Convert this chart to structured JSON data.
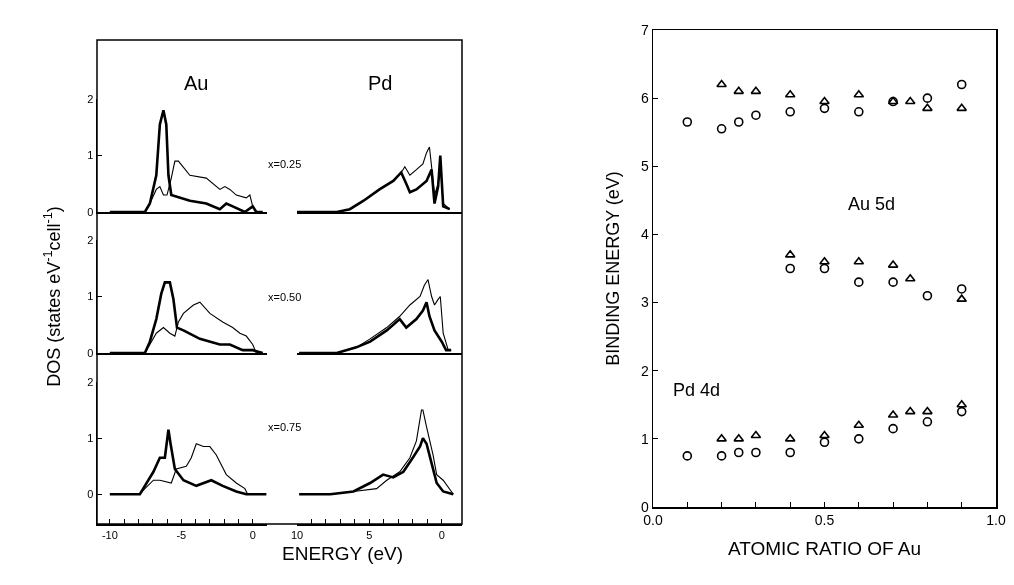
{
  "chart_data": [
    {
      "type": "line",
      "title": "Au",
      "xlim": [
        -10.9,
        1
      ],
      "ylim": [
        0,
        2
      ],
      "yticks": [
        0,
        1,
        2
      ],
      "tick_labels": "y",
      "series": [
        {
          "color": "#000000",
          "x": [
            -10,
            -7.55,
            -7.2,
            -6.75,
            -6.5,
            -6.25,
            -6.05,
            -5.9,
            -5.7,
            -4.4,
            -3.25,
            -2.3,
            -1.85,
            -1.4,
            -0.55,
            0,
            0.25,
            0.7
          ],
          "values": [
            0,
            0,
            0.15,
            0.65,
            1.55,
            1.8,
            1.55,
            0.65,
            0.3,
            0.2,
            0.15,
            0.05,
            0.15,
            0.1,
            0,
            0.1,
            0,
            0
          ]
        },
        {
          "color": "#000000",
          "x": [
            -10,
            -7.55,
            -7.2,
            -6.75,
            -6.5,
            -6.25,
            -6.0,
            -5.7,
            -5.45,
            -5.2,
            -4.4,
            -3.25,
            -2.3,
            -1.95,
            -1.6,
            -1.15,
            -0.45,
            -0.2,
            0,
            0.25,
            0.7
          ],
          "values": [
            0,
            0,
            0.15,
            0.4,
            0.45,
            0.3,
            0.3,
            0.6,
            0.9,
            0.9,
            0.65,
            0.6,
            0.4,
            0.45,
            0.4,
            0.3,
            0.25,
            0.3,
            0.1,
            0,
            0
          ]
        }
      ]
    },
    {
      "type": "line",
      "title": "Pd",
      "annotations": [
        "x=0.25"
      ],
      "xlim": [
        10,
        -1.4
      ],
      "ylim": [
        0,
        2
      ],
      "yticks": [
        0,
        1,
        2
      ],
      "tick_labels": false,
      "series": [
        {
          "color": "#000000",
          "x": [
            10,
            7.25,
            6.35,
            5.4,
            4.3,
            3.35,
            2.8,
            2.45,
            2.2,
            1.75,
            1.05,
            0.7,
            0.5,
            0.25,
            0.1,
            -0.1,
            -0.55
          ],
          "values": [
            0,
            0,
            0.05,
            0.2,
            0.4,
            0.55,
            0.7,
            0.5,
            0.35,
            0.4,
            0.55,
            0.75,
            0.15,
            0.45,
            1.0,
            0.1,
            0.05
          ]
        },
        {
          "color": "#000000",
          "x": [
            10,
            7.25,
            6.35,
            5.4,
            4.3,
            3.35,
            2.8,
            2.55,
            2.2,
            1.75,
            1.3,
            1.05,
            0.85,
            0.7,
            0.5,
            0.25,
            0.1,
            -0.1,
            -0.55
          ],
          "values": [
            0,
            0,
            0.05,
            0.2,
            0.4,
            0.55,
            0.7,
            0.8,
            0.65,
            0.75,
            0.85,
            1.05,
            1.15,
            0.8,
            0.3,
            0.5,
            0.85,
            0.15,
            0.05
          ]
        }
      ]
    },
    {
      "type": "line",
      "ylabel": "DOS (states eV$^{-1}$cell$^{-1}$)",
      "xlim": [
        -10.9,
        1
      ],
      "ylim": [
        0,
        2
      ],
      "yticks": [
        0,
        1,
        2
      ],
      "tick_labels": "y",
      "series": [
        {
          "color": "#000000",
          "x": [
            -10,
            -7.55,
            -7.2,
            -6.75,
            -6.4,
            -6.15,
            -5.8,
            -5.55,
            -5.3,
            -4.85,
            -3.7,
            -2.3,
            -1.6,
            -0.7,
            0,
            0.7
          ],
          "values": [
            0,
            0,
            0.2,
            0.6,
            1.05,
            1.25,
            1.25,
            0.95,
            0.45,
            0.4,
            0.25,
            0.15,
            0.15,
            0.05,
            0.05,
            0
          ]
        },
        {
          "color": "#000000",
          "x": [
            -10,
            -7.55,
            -7.2,
            -6.75,
            -6.25,
            -5.8,
            -5.45,
            -5.2,
            -4.85,
            -4.15,
            -3.7,
            -3,
            -2.1,
            -1.4,
            -0.9,
            -0.45,
            0,
            0.25,
            0.7
          ],
          "values": [
            0,
            0,
            0.15,
            0.35,
            0.45,
            0.35,
            0.3,
            0.55,
            0.7,
            0.85,
            0.9,
            0.7,
            0.55,
            0.45,
            0.35,
            0.3,
            0.15,
            0,
            0
          ]
        }
      ]
    },
    {
      "type": "line",
      "annotations": [
        "x=0.50"
      ],
      "xlim": [
        10,
        -1.4
      ],
      "ylim": [
        0,
        2
      ],
      "yticks": [
        0,
        1,
        2
      ],
      "tick_labels": false,
      "series": [
        {
          "color": "#000000",
          "x": [
            9.85,
            7.25,
            5.9,
            4.95,
            3.8,
            2.9,
            2.45,
            1.75,
            1.3,
            1.05,
            0.85,
            0.5,
            0,
            -0.3,
            -0.65
          ],
          "values": [
            0,
            0,
            0.1,
            0.2,
            0.4,
            0.6,
            0.45,
            0.6,
            0.75,
            0.9,
            0.65,
            0.4,
            0.2,
            0.05,
            0.05
          ]
        },
        {
          "color": "#000000",
          "x": [
            9.85,
            7.25,
            5.9,
            4.95,
            3.8,
            2.9,
            2.2,
            1.5,
            1.2,
            0.95,
            0.7,
            0.5,
            0.25,
            0.1,
            -0.1,
            -0.45,
            -0.65
          ],
          "values": [
            0,
            0,
            0.1,
            0.25,
            0.45,
            0.65,
            0.85,
            1.0,
            1.2,
            1.3,
            1.0,
            0.85,
            0.95,
            1.0,
            0.35,
            0.05,
            0.05
          ]
        }
      ]
    },
    {
      "type": "line",
      "xlabel": "ENERGY (eV)",
      "xlim": [
        -10.9,
        1
      ],
      "ylim": [
        -0.53,
        2
      ],
      "yticks": [
        0,
        1,
        2
      ],
      "xticks": [
        -10,
        {
          "value": -9,
          "label": null
        },
        {
          "value": -8,
          "label": null
        },
        {
          "value": -7,
          "label": null
        },
        {
          "value": -6,
          "label": null
        },
        -5,
        {
          "value": -4,
          "label": null
        },
        {
          "value": -3,
          "label": null
        },
        {
          "value": -2,
          "label": null
        },
        {
          "value": -1,
          "label": null
        },
        0
      ],
      "series": [
        {
          "color": "#000000",
          "x": [
            -10,
            -7.9,
            -7.55,
            -6.95,
            -6.5,
            -6.15,
            -5.9,
            -5.75,
            -5.45,
            -4.85,
            -3.95,
            -2.9,
            -2.1,
            -1.15,
            -0.45,
            0.95
          ],
          "values": [
            0,
            0,
            0.15,
            0.4,
            0.65,
            0.65,
            1.15,
            0.9,
            0.45,
            0.25,
            0.15,
            0.25,
            0.15,
            0.05,
            0,
            0
          ]
        },
        {
          "color": "#000000",
          "x": [
            -10,
            -7.9,
            -7.55,
            -6.95,
            -6.5,
            -5.7,
            -5.35,
            -4.65,
            -4.3,
            -3.95,
            -3.45,
            -3,
            -2.55,
            -1.85,
            -1.15,
            -0.55,
            -0.35,
            0.95
          ],
          "values": [
            0,
            0,
            0.1,
            0.25,
            0.25,
            0.2,
            0.45,
            0.5,
            0.65,
            0.9,
            0.85,
            0.85,
            0.7,
            0.35,
            0.2,
            0.1,
            0,
            0
          ]
        }
      ]
    },
    {
      "type": "line",
      "annotations": [
        "x=0.75"
      ],
      "xlim": [
        10,
        -1.4
      ],
      "ylim": [
        -0.53,
        2
      ],
      "yticks": [
        0,
        1,
        2
      ],
      "tick_labels": "x",
      "xticks": [
        10,
        {
          "value": 9,
          "label": null
        },
        {
          "value": 8,
          "label": null
        },
        {
          "value": 7,
          "label": null
        },
        {
          "value": 6,
          "label": null
        },
        5,
        {
          "value": 4,
          "label": null
        },
        {
          "value": 3,
          "label": null
        },
        {
          "value": 2,
          "label": null
        },
        {
          "value": 1,
          "label": null
        },
        0
      ],
      "series": [
        {
          "color": "#000000",
          "x": [
            9.85,
            7.7,
            6.1,
            4.95,
            4.05,
            3.35,
            2.65,
            2,
            1.5,
            1.3,
            1.05,
            0.7,
            0.35,
            -0.1,
            -0.8
          ],
          "values": [
            0,
            0,
            0.05,
            0.2,
            0.35,
            0.3,
            0.4,
            0.65,
            0.85,
            1.0,
            0.9,
            0.55,
            0.2,
            0.05,
            0
          ]
        },
        {
          "color": "#000000",
          "x": [
            9.85,
            7.7,
            6.1,
            4.5,
            3.8,
            2.9,
            2.2,
            1.75,
            1.4,
            1.3,
            1.05,
            0.6,
            0.35,
            -0.1,
            -0.8
          ],
          "values": [
            0,
            0,
            0.05,
            0.1,
            0.25,
            0.4,
            0.65,
            0.95,
            1.5,
            1.5,
            1.2,
            0.7,
            0.35,
            0.25,
            0
          ]
        }
      ]
    },
    {
      "type": "scatter",
      "xlabel": "ATOMIC RATIO OF Au",
      "ylabel": "BINDING ENERGY (eV)",
      "annotations": [
        "Au 5d",
        "Pd 4d"
      ],
      "xlim": [
        0,
        1
      ],
      "ylim": [
        0,
        7
      ],
      "xticks": [
        {
          "value": 0,
          "label": "0.0"
        },
        {
          "value": 0.1,
          "label": null
        },
        {
          "value": 0.2,
          "label": null
        },
        {
          "value": 0.3,
          "label": null
        },
        {
          "value": 0.4,
          "label": null
        },
        {
          "value": 0.5,
          "label": "0.5"
        },
        {
          "value": 0.6,
          "label": null
        },
        {
          "value": 0.7,
          "label": null
        },
        {
          "value": 0.8,
          "label": null
        },
        {
          "value": 0.9,
          "label": null
        },
        {
          "value": 1,
          "label": "1.0"
        }
      ],
      "yticks": [
        0,
        1,
        2,
        3,
        4,
        5,
        6,
        7
      ],
      "series": [
        {
          "color": "#000000",
          "marker": "circle",
          "x": [
            0.1,
            0.2,
            0.25,
            0.3,
            0.4,
            0.5,
            0.6,
            0.7,
            0.8,
            0.9,
            0.4,
            0.5,
            0.6,
            0.7,
            0.8,
            0.9,
            0.1,
            0.2,
            0.25,
            0.3,
            0.4,
            0.5,
            0.6,
            0.7,
            0.8,
            0.9
          ],
          "values": [
            5.65,
            5.55,
            5.65,
            5.75,
            5.8,
            5.85,
            5.8,
            5.95,
            6.0,
            6.2,
            3.5,
            3.5,
            3.3,
            3.3,
            3.1,
            3.2,
            0.75,
            0.75,
            0.8,
            0.8,
            0.8,
            0.95,
            1.0,
            1.15,
            1.25,
            1.4
          ]
        },
        {
          "color": "#000000",
          "marker": "triangle",
          "x": [
            0.2,
            0.25,
            0.3,
            0.4,
            0.5,
            0.6,
            0.7,
            0.75,
            0.8,
            0.9,
            0.4,
            0.5,
            0.6,
            0.7,
            0.75,
            0.9,
            0.2,
            0.25,
            0.3,
            0.4,
            0.5,
            0.6,
            0.7,
            0.75,
            0.8,
            0.9
          ],
          "values": [
            6.2,
            6.1,
            6.1,
            6.05,
            5.95,
            6.05,
            5.95,
            5.95,
            5.85,
            5.85,
            3.7,
            3.6,
            3.6,
            3.55,
            3.35,
            3.05,
            1.0,
            1.0,
            1.05,
            1.0,
            1.05,
            1.2,
            1.35,
            1.4,
            1.4,
            1.5
          ]
        }
      ]
    }
  ]
}
